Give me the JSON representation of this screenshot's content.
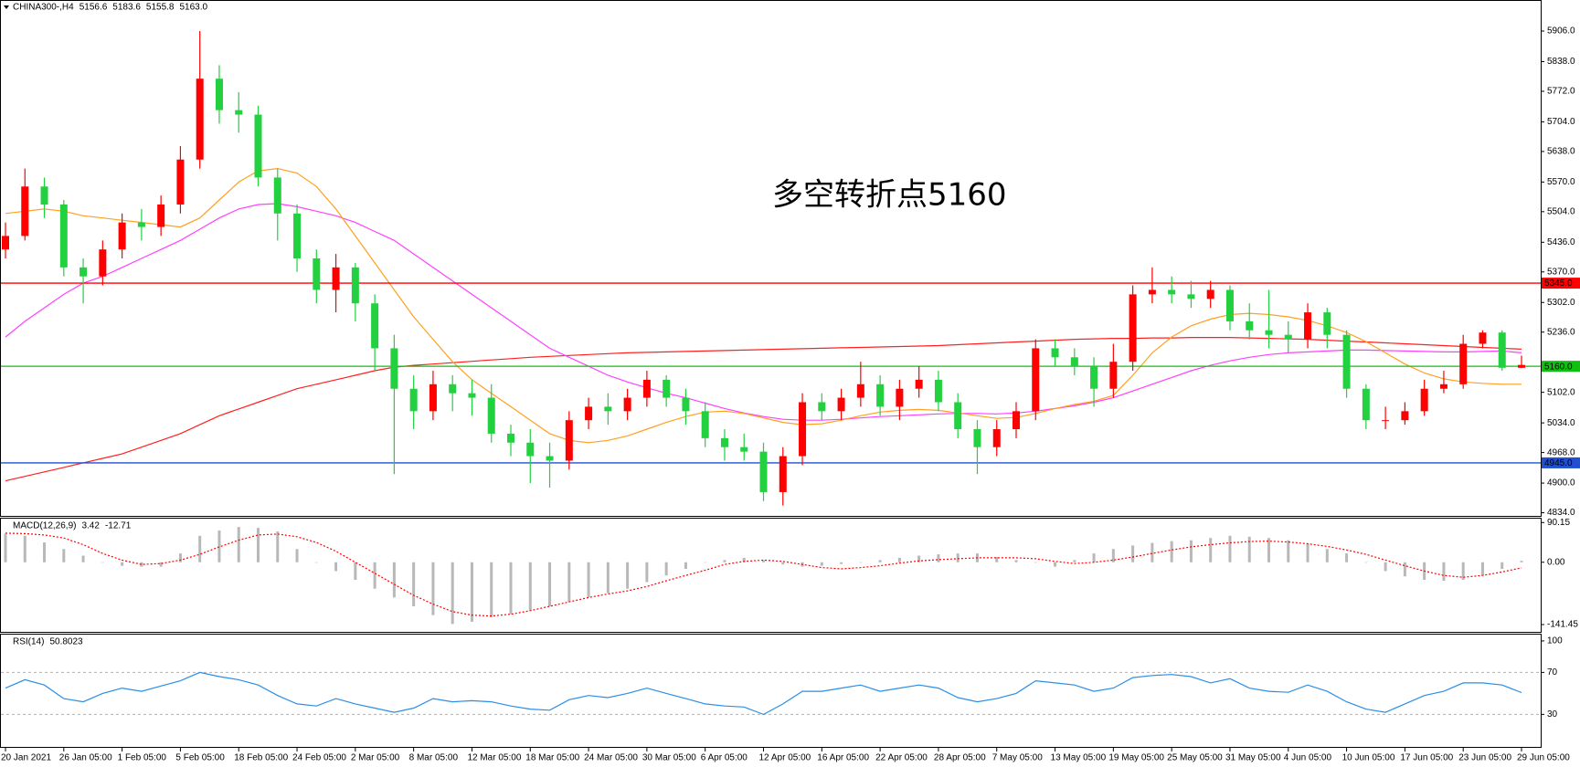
{
  "chart_data": [
    {
      "type": "candlestick",
      "title": "CHINA300-,H4",
      "last_bar_labels": [
        "5156.6",
        "5183.6",
        "5155.8",
        "5163.0"
      ],
      "annotation": "多空转折点5160",
      "annotation_color": "#e8242f",
      "up_color": "#ff0000",
      "down_color": "#22d040",
      "categories": [
        "20 Jan 2021",
        null,
        null,
        "26 Jan 05:00",
        null,
        null,
        "1 Feb 05:00",
        null,
        null,
        "5 Feb 05:00",
        null,
        null,
        "18 Feb 05:00",
        null,
        null,
        "24 Feb 05:00",
        null,
        null,
        "2 Mar 05:00",
        null,
        null,
        "8 Mar 05:00",
        null,
        null,
        "12 Mar 05:00",
        null,
        null,
        "18 Mar 05:00",
        null,
        null,
        "24 Mar 05:00",
        null,
        null,
        "30 Mar 05:00",
        null,
        null,
        "6 Apr 05:00",
        null,
        null,
        "12 Apr 05:00",
        null,
        null,
        "16 Apr 05:00",
        null,
        null,
        "22 Apr 05:00",
        null,
        null,
        "28 Apr 05:00",
        null,
        null,
        "7 May 05:00",
        null,
        null,
        "13 May 05:00",
        null,
        null,
        "19 May 05:00",
        null,
        null,
        "25 May 05:00",
        null,
        null,
        "31 May 05:00",
        null,
        null,
        "4 Jun 05:00",
        null,
        null,
        "10 Jun 05:00",
        null,
        null,
        "17 Jun 05:00",
        null,
        null,
        "23 Jun 05:00",
        null,
        null,
        "29 Jun 05:00"
      ],
      "open": [
        5420,
        5450,
        5560,
        5520,
        5380,
        5360,
        5420,
        5480,
        5470,
        5520,
        5620,
        5800,
        5730,
        5720,
        5580,
        5500,
        5400,
        5330,
        5380,
        5300,
        5200,
        5110,
        5060,
        5120,
        5100,
        5090,
        5010,
        4990,
        4960,
        4950,
        5040,
        5070,
        5060,
        5090,
        5130,
        5090,
        5060,
        5000,
        4980,
        4970,
        4880,
        4960,
        5080,
        5060,
        5090,
        5120,
        5070,
        5110,
        5130,
        5080,
        5020,
        4980,
        5020,
        5060,
        5200,
        5180,
        5160,
        5110,
        5170,
        5320,
        5330,
        5320,
        5310,
        5330,
        5260,
        5240,
        5230,
        5220,
        5280,
        5230,
        5110,
        5040,
        5040,
        5060,
        5110,
        5120,
        5210,
        5235,
        5156.6
      ],
      "high": [
        5480,
        5600,
        5580,
        5530,
        5400,
        5440,
        5500,
        5510,
        5540,
        5650,
        5906,
        5830,
        5770,
        5740,
        5600,
        5520,
        5420,
        5410,
        5390,
        5320,
        5230,
        5140,
        5150,
        5140,
        5130,
        5120,
        5030,
        5020,
        4990,
        5060,
        5090,
        5100,
        5110,
        5150,
        5140,
        5110,
        5080,
        5020,
        5010,
        4990,
        4980,
        5100,
        5100,
        5110,
        5170,
        5140,
        5130,
        5160,
        5150,
        5100,
        5040,
        5040,
        5080,
        5220,
        5220,
        5200,
        5180,
        5210,
        5340,
        5380,
        5360,
        5350,
        5350,
        5340,
        5300,
        5330,
        5260,
        5300,
        5290,
        5240,
        5120,
        5070,
        5080,
        5130,
        5150,
        5230,
        5240,
        5240,
        5183.6
      ],
      "low": [
        5400,
        5440,
        5490,
        5360,
        5300,
        5340,
        5400,
        5440,
        5450,
        5500,
        5600,
        5700,
        5680,
        5560,
        5440,
        5370,
        5300,
        5280,
        5260,
        5150,
        4920,
        5020,
        5040,
        5060,
        5050,
        4990,
        4960,
        4900,
        4890,
        4930,
        5020,
        5030,
        5040,
        5070,
        5070,
        5030,
        4980,
        4950,
        4950,
        4860,
        4850,
        4940,
        5040,
        5040,
        5070,
        5050,
        5040,
        5090,
        5060,
        5000,
        4920,
        4960,
        5000,
        5040,
        5160,
        5140,
        5070,
        5090,
        5150,
        5300,
        5300,
        5290,
        5290,
        5240,
        5220,
        5200,
        5190,
        5200,
        5200,
        5090,
        5020,
        5020,
        5030,
        5050,
        5100,
        5110,
        5200,
        5150,
        5155.8
      ],
      "close": [
        5450,
        5560,
        5520,
        5380,
        5360,
        5420,
        5480,
        5470,
        5520,
        5620,
        5800,
        5730,
        5720,
        5580,
        5500,
        5400,
        5330,
        5380,
        5300,
        5200,
        5110,
        5060,
        5120,
        5100,
        5090,
        5010,
        4990,
        4960,
        4950,
        5040,
        5070,
        5060,
        5090,
        5130,
        5090,
        5060,
        5000,
        4980,
        4970,
        4880,
        4960,
        5080,
        5060,
        5090,
        5120,
        5070,
        5110,
        5130,
        5080,
        5020,
        4980,
        5020,
        5060,
        5200,
        5180,
        5160,
        5110,
        5170,
        5320,
        5330,
        5320,
        5310,
        5330,
        5260,
        5240,
        5230,
        5220,
        5280,
        5230,
        5110,
        5040,
        5040,
        5060,
        5110,
        5120,
        5210,
        5235,
        5156.6,
        5163
      ],
      "lines": [
        {
          "color": "#ff2020",
          "values": [
            4905,
            4915,
            4925,
            4935,
            4945,
            4955,
            4965,
            4980,
            4995,
            5010,
            5030,
            5050,
            5065,
            5080,
            5095,
            5110,
            5120,
            5130,
            5140,
            5150,
            5158,
            5162,
            5165,
            5168,
            5171,
            5174,
            5177,
            5180,
            5182,
            5184,
            5186,
            5188,
            5190,
            5191,
            5192,
            5193,
            5194,
            5195,
            5196,
            5197,
            5198,
            5199,
            5200,
            5201,
            5202,
            5203,
            5204,
            5205,
            5206,
            5208,
            5210,
            5212,
            5214,
            5216,
            5218,
            5220,
            5221,
            5222,
            5222,
            5223,
            5223,
            5224,
            5224,
            5224,
            5223,
            5222,
            5221,
            5220,
            5218,
            5216,
            5214,
            5212,
            5210,
            5208,
            5206,
            5204,
            5202,
            5200,
            5198
          ]
        },
        {
          "color": "#ff40ff",
          "values": [
            5225,
            5260,
            5290,
            5320,
            5345,
            5360,
            5380,
            5400,
            5420,
            5440,
            5465,
            5490,
            5510,
            5520,
            5522,
            5515,
            5505,
            5495,
            5480,
            5460,
            5440,
            5410,
            5380,
            5350,
            5320,
            5290,
            5260,
            5230,
            5200,
            5180,
            5160,
            5140,
            5125,
            5112,
            5100,
            5090,
            5078,
            5066,
            5056,
            5048,
            5042,
            5040,
            5040,
            5042,
            5045,
            5048,
            5050,
            5052,
            5054,
            5055,
            5055,
            5054,
            5056,
            5060,
            5066,
            5072,
            5080,
            5090,
            5105,
            5120,
            5135,
            5150,
            5162,
            5172,
            5180,
            5186,
            5190,
            5192,
            5194,
            5196,
            5196,
            5195,
            5194,
            5193,
            5192,
            5192,
            5193,
            5194,
            5190
          ]
        },
        {
          "color": "#ffa020",
          "values": [
            5500,
            5505,
            5510,
            5505,
            5495,
            5490,
            5485,
            5480,
            5475,
            5470,
            5490,
            5530,
            5570,
            5595,
            5600,
            5590,
            5560,
            5510,
            5450,
            5390,
            5330,
            5270,
            5220,
            5170,
            5130,
            5100,
            5070,
            5040,
            5010,
            4995,
            4990,
            4995,
            5005,
            5020,
            5035,
            5048,
            5058,
            5060,
            5055,
            5045,
            5035,
            5030,
            5032,
            5040,
            5050,
            5058,
            5062,
            5064,
            5062,
            5056,
            5050,
            5044,
            5046,
            5055,
            5066,
            5075,
            5082,
            5095,
            5140,
            5190,
            5225,
            5250,
            5265,
            5275,
            5278,
            5275,
            5270,
            5262,
            5250,
            5235,
            5215,
            5190,
            5165,
            5145,
            5132,
            5125,
            5122,
            5120,
            5120
          ]
        }
      ],
      "hlines": [
        {
          "value": 5345,
          "label": "5345.0",
          "color": "#ff0000"
        },
        {
          "value": 5160,
          "label": "5160.0",
          "color": "#10c010"
        },
        {
          "value": 4945,
          "label": "4945.0",
          "color": "#2050d0"
        }
      ],
      "ylim": [
        4827,
        5969
      ],
      "yticks": [
        {
          "value": 5906,
          "label": "5906.0"
        },
        {
          "value": 5838,
          "label": "5838.0"
        },
        {
          "value": 5772,
          "label": "5772.0"
        },
        {
          "value": 5704,
          "label": "5704.0"
        },
        {
          "value": 5638,
          "label": "5638.0"
        },
        {
          "value": 5570,
          "label": "5570.0"
        },
        {
          "value": 5504,
          "label": "5504.0"
        },
        {
          "value": 5436,
          "label": "5436.0"
        },
        {
          "value": 5370,
          "label": "5370.0"
        },
        {
          "value": 5302,
          "label": "5302.0"
        },
        {
          "value": 5236,
          "label": "5236.0"
        },
        {
          "value": 5102,
          "label": "5102.0"
        },
        {
          "value": 5034,
          "label": "5034.0"
        },
        {
          "value": 4968,
          "label": "4968.0"
        },
        {
          "value": 4900,
          "label": "4900.0"
        },
        {
          "value": 4834,
          "label": "4834.0"
        }
      ],
      "grid": false
    },
    {
      "type": "macd",
      "title": "MACD(12,26,9)",
      "histogram": {
        "color": "#b8b8b8",
        "values": [
          65,
          60,
          45,
          30,
          15,
          0,
          -8,
          -10,
          -10,
          20,
          60,
          72,
          80,
          78,
          70,
          30,
          0,
          -20,
          -40,
          -60,
          -80,
          -100,
          -120,
          -140,
          -135,
          -125,
          -118,
          -110,
          -100,
          -90,
          -80,
          -70,
          -60,
          -45,
          -30,
          -15,
          0,
          5,
          10,
          5,
          -5,
          -10,
          -8,
          -4,
          0,
          5,
          10,
          15,
          18,
          20,
          20,
          12,
          5,
          0,
          -10,
          5,
          20,
          30,
          38,
          44,
          48,
          50,
          55,
          60,
          58,
          55,
          50,
          42,
          30,
          20,
          0,
          -20,
          -32,
          -40,
          -42,
          -40,
          -30,
          -15,
          3.42
        ]
      },
      "signal": {
        "color": "#ff0000",
        "values": [
          66,
          65,
          62,
          55,
          40,
          20,
          5,
          -5,
          -3,
          5,
          18,
          35,
          50,
          62,
          64,
          58,
          45,
          25,
          0,
          -25,
          -50,
          -75,
          -95,
          -112,
          -120,
          -122,
          -118,
          -110,
          -100,
          -90,
          -80,
          -72,
          -65,
          -55,
          -42,
          -30,
          -18,
          -5,
          2,
          5,
          2,
          -5,
          -12,
          -15,
          -12,
          -8,
          -2,
          3,
          6,
          8,
          10,
          10,
          10,
          8,
          2,
          -3,
          0,
          5,
          12,
          20,
          28,
          35,
          40,
          44,
          47,
          48,
          46,
          42,
          36,
          28,
          18,
          5,
          -8,
          -20,
          -30,
          -34,
          -30,
          -22,
          -12.71
        ]
      },
      "ylim": [
        -158,
        99
      ],
      "yticks": [
        90.15,
        {
          "value": 0,
          "label": "0.00"
        },
        -141.45
      ]
    },
    {
      "type": "rsi",
      "title": "RSI(14)",
      "color": "#2a8ee8",
      "values": [
        55,
        63,
        58,
        45,
        42,
        50,
        55,
        52,
        57,
        62,
        70,
        66,
        63,
        58,
        48,
        40,
        38,
        45,
        40,
        36,
        32,
        36,
        45,
        42,
        43,
        42,
        38,
        35,
        34,
        44,
        48,
        46,
        50,
        55,
        50,
        45,
        40,
        38,
        37,
        30,
        40,
        52,
        52,
        55,
        58,
        52,
        55,
        58,
        55,
        46,
        42,
        45,
        50,
        62,
        60,
        58,
        52,
        55,
        65,
        67,
        68,
        66,
        60,
        64,
        55,
        52,
        51,
        58,
        52,
        42,
        35,
        32,
        40,
        48,
        52,
        60,
        60,
        58,
        50.8023
      ],
      "levels": [
        70,
        30
      ],
      "ylim": [
        -1,
        106
      ],
      "yticks": [
        100,
        70,
        30
      ]
    }
  ]
}
